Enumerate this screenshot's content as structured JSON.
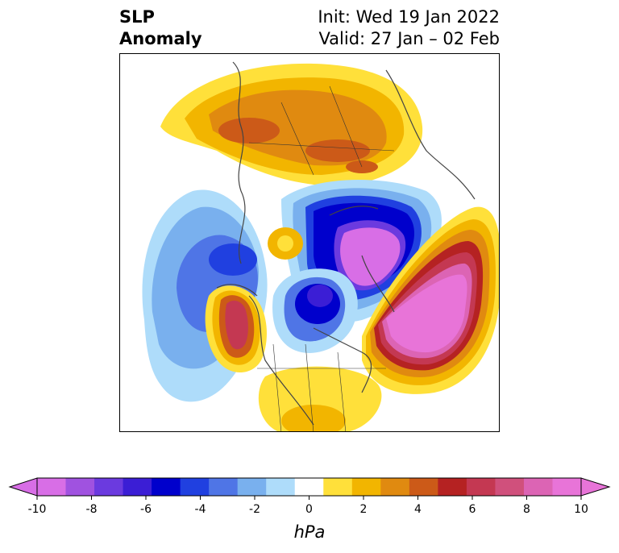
{
  "title": {
    "left_line1": "SLP",
    "left_line2": "Anomaly",
    "init": "Init: Wed 19 Jan 2022",
    "valid": "Valid: 27 Jan – 02 Feb"
  },
  "colorbar": {
    "unit": "hPa",
    "levels": [
      -10,
      -9,
      -8,
      -7,
      -6,
      -5,
      -4,
      -3,
      -2,
      -1,
      1,
      2,
      3,
      4,
      5,
      6,
      7,
      8,
      9,
      10
    ],
    "colors": [
      "#d86ee6",
      "#a052e0",
      "#6b3adf",
      "#3b1ed5",
      "#0000cc",
      "#2040e0",
      "#4f75e6",
      "#79b0ee",
      "#aedcfa",
      "#ffffff",
      "#ffe03a",
      "#f2b500",
      "#e08a10",
      "#cc5a18",
      "#b52222",
      "#c43852",
      "#d0507c",
      "#dc64b4",
      "#e874d8"
    ],
    "ticks": [
      "-10",
      "-8",
      "-6",
      "-4",
      "-2",
      "0",
      "2",
      "4",
      "6",
      "8",
      "10"
    ],
    "extend": "both"
  },
  "map": {
    "projection": "north-polar-stereographic",
    "features": [
      {
        "name": "high-north-atlantic",
        "anomaly": 10
      },
      {
        "name": "high-siberia",
        "anomaly": 5
      },
      {
        "name": "high-alaska-gulf",
        "anomaly": 6
      },
      {
        "name": "high-west-europe",
        "anomaly": 2
      },
      {
        "name": "low-arctic-kara",
        "anomaly": -10
      },
      {
        "name": "low-canada-greenland",
        "anomaly": -7
      },
      {
        "name": "low-north-pacific",
        "anomaly": -4
      }
    ]
  }
}
